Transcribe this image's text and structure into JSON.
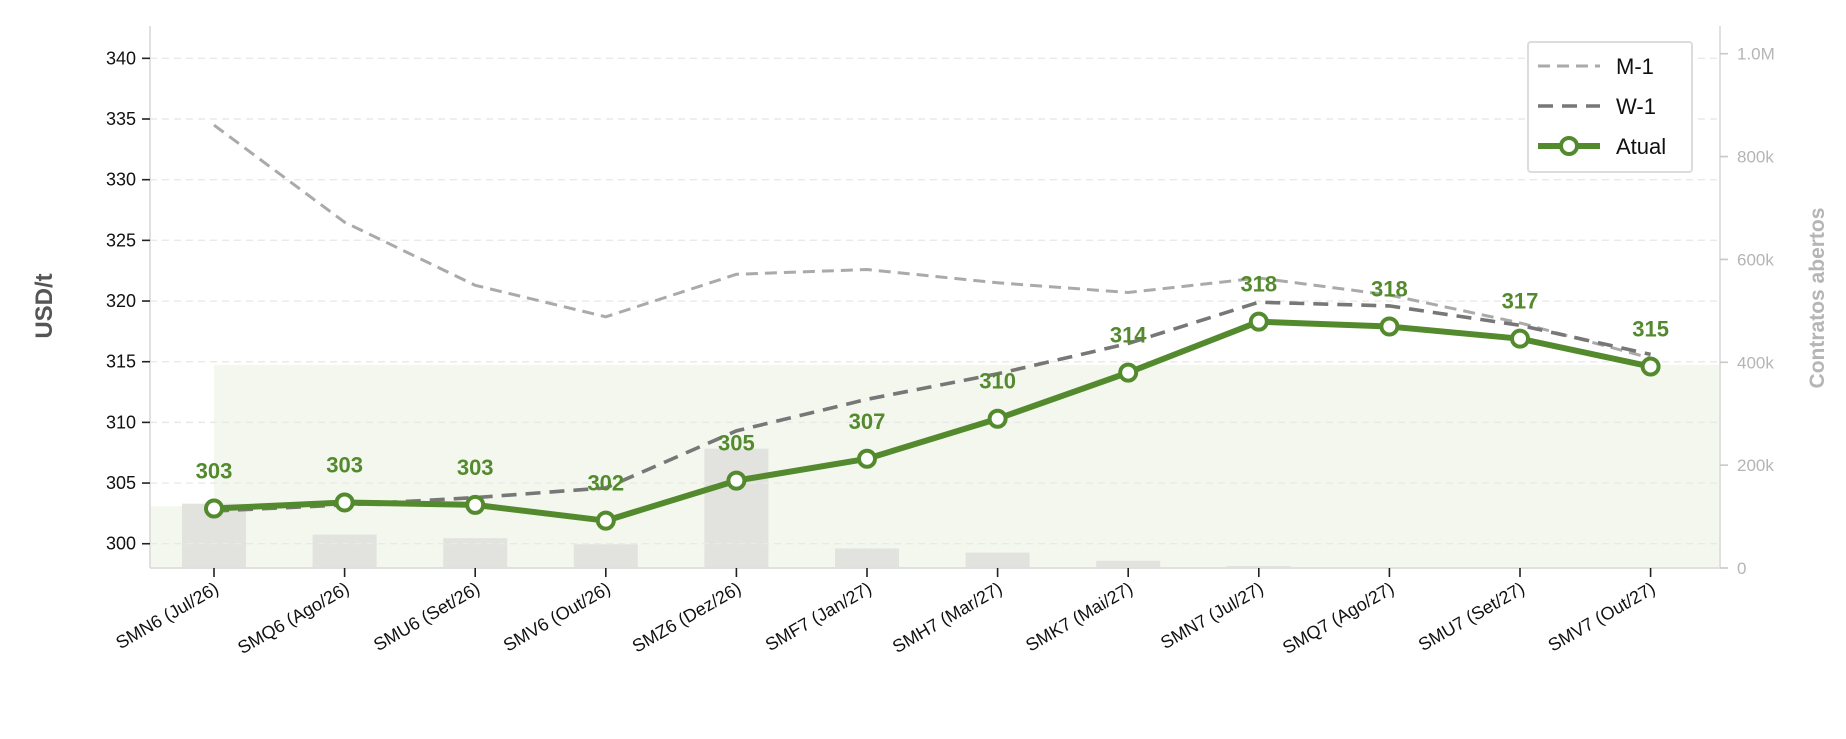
{
  "chart_data": {
    "type": "line",
    "categories": [
      "SMN6 (Jul/26)",
      "SMQ6 (Ago/26)",
      "SMU6 (Set/26)",
      "SMV6 (Out/26)",
      "SMZ6 (Dez/26)",
      "SMF7 (Jan/27)",
      "SMH7 (Mar/27)",
      "SMK7 (Mai/27)",
      "SMN7 (Jul/27)",
      "SMQ7 (Ago/27)",
      "SMU7 (Set/27)",
      "SMV7 (Out/27)"
    ],
    "series": [
      {
        "name": "M-1",
        "values": [
          334.5,
          326.5,
          321.3,
          318.7,
          322.2,
          322.6,
          321.5,
          320.7,
          321.9,
          320.5,
          318.2,
          315.3
        ],
        "color": "#aaaaaa",
        "style": "dashed"
      },
      {
        "name": "W-1",
        "values": [
          302.7,
          303.2,
          303.8,
          304.6,
          309.3,
          311.9,
          314.0,
          316.5,
          319.9,
          319.6,
          318.0,
          315.6
        ],
        "color": "#777777",
        "style": "dashed"
      },
      {
        "name": "Atual",
        "values": [
          302.9,
          303.4,
          303.2,
          301.9,
          305.2,
          307.0,
          310.3,
          314.1,
          318.3,
          317.9,
          316.9,
          314.6
        ],
        "color": "#548a2e",
        "style": "solid-markers"
      }
    ],
    "data_labels": [
      "303",
      "303",
      "303",
      "302",
      "305",
      "307",
      "310",
      "314",
      "318",
      "318",
      "317",
      "315"
    ],
    "bars": {
      "axis": "right",
      "values": [
        125000,
        65000,
        58000,
        46000,
        232000,
        38000,
        30000,
        14000,
        4000,
        1500,
        800,
        500
      ],
      "color": "#e2e2df"
    },
    "area": {
      "axis": "right",
      "value": 395000,
      "start_value": 120000,
      "color": "#f4f7ee"
    },
    "ylabel": "USD/t",
    "y2label": "Contratos abertos",
    "ylim": [
      298,
      342.5
    ],
    "yticks": [
      300,
      305,
      310,
      315,
      320,
      325,
      330,
      335,
      340
    ],
    "y2lim": [
      0,
      1050000
    ],
    "y2ticks": [
      0,
      200000,
      400000,
      600000,
      800000,
      1000000
    ],
    "y2ticklabels": [
      "0",
      "200k",
      "400k",
      "600k",
      "800k",
      "1.0M"
    ],
    "grid": "horizontal-dashed",
    "legend_position": "top-right"
  }
}
